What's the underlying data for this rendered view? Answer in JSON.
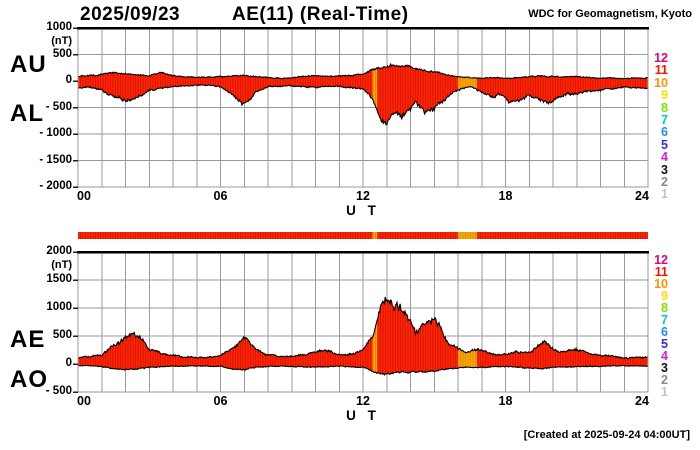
{
  "header": {
    "date": "2025/09/23",
    "title": "AE(11) (Real-Time)",
    "credit": "WDC for Geomagnetism, Kyoto"
  },
  "footer": {
    "created": "[Created at 2025-09-24 04:00UT]"
  },
  "colors": {
    "fill_red": "#ff2404",
    "fill_red_stripe": "#d81800",
    "fill_orange": "#ffa800",
    "fill_orange_stripe": "#e08c00",
    "grid": "#9a9a9a",
    "outline": "#000000",
    "top_border": "#000000"
  },
  "legend": {
    "values": [
      "12",
      "11",
      "10",
      "9",
      "8",
      "7",
      "6",
      "5",
      "4",
      "3",
      "2",
      "1"
    ],
    "colors": [
      "#e6007e",
      "#ff1000",
      "#ff9000",
      "#ffdc00",
      "#80e000",
      "#00c8d0",
      "#2088f8",
      "#4028d0",
      "#e018e0",
      "#101010",
      "#8a8a8a",
      "#c4c4c4"
    ]
  },
  "panels": [
    {
      "name": "AU-AL",
      "unit": "(nT)",
      "left_labels": [
        "AU",
        "AL"
      ],
      "ytick_labels": [
        "1000",
        "500",
        "0",
        "- 500",
        "- 1000",
        "- 1500",
        "- 2000"
      ],
      "ytick_values": [
        1000,
        500,
        0,
        -500,
        -1000,
        -1500,
        -2000
      ],
      "ymax": 1000,
      "ymin": -2000,
      "xtick_labels": [
        "00",
        "06",
        "12",
        "18",
        "24"
      ],
      "xtick_values": [
        0,
        6,
        12,
        18,
        24
      ],
      "xlabel": "U T"
    },
    {
      "name": "AE-AO",
      "unit": "(nT)",
      "left_labels": [
        "AE",
        "AO"
      ],
      "ytick_labels": [
        "2000",
        "1500",
        "1000",
        "500",
        "0",
        "- 500"
      ],
      "ytick_values": [
        2000,
        1500,
        1000,
        500,
        0,
        -500
      ],
      "ymax": 2000,
      "ymin": -500,
      "xtick_labels": [
        "00",
        "06",
        "12",
        "18",
        "24"
      ],
      "xtick_values": [
        0,
        6,
        12,
        18,
        24
      ],
      "xlabel": "U T"
    }
  ],
  "chart_data": [
    {
      "type": "area",
      "title": "AU / AL auroral electrojet indices, 2025/09/23",
      "xlabel": "U T",
      "ylabel": "nT",
      "xlim": [
        0,
        24
      ],
      "ylim": [
        -2000,
        1000
      ],
      "grid": true,
      "series": [
        {
          "name": "AU",
          "points": [
            [
              0,
              80
            ],
            [
              0.5,
              110
            ],
            [
              1,
              130
            ],
            [
              1.5,
              150
            ],
            [
              2,
              140
            ],
            [
              2.5,
              120
            ],
            [
              3,
              100
            ],
            [
              3.5,
              170
            ],
            [
              3.8,
              120
            ],
            [
              4,
              100
            ],
            [
              4.5,
              80
            ],
            [
              5,
              70
            ],
            [
              5.5,
              75
            ],
            [
              6,
              85
            ],
            [
              6.5,
              95
            ],
            [
              7,
              110
            ],
            [
              7.5,
              85
            ],
            [
              8,
              65
            ],
            [
              8.5,
              55
            ],
            [
              9,
              65
            ],
            [
              9.5,
              85
            ],
            [
              10,
              95
            ],
            [
              10.5,
              90
            ],
            [
              11,
              95
            ],
            [
              11.5,
              105
            ],
            [
              12,
              130
            ],
            [
              12.4,
              220
            ],
            [
              12.8,
              260
            ],
            [
              13.2,
              290
            ],
            [
              13.6,
              300
            ],
            [
              14,
              260
            ],
            [
              14.4,
              210
            ],
            [
              14.8,
              190
            ],
            [
              15.2,
              150
            ],
            [
              15.6,
              110
            ],
            [
              16,
              80
            ],
            [
              16.5,
              60
            ],
            [
              17,
              55
            ],
            [
              17.5,
              65
            ],
            [
              18,
              55
            ],
            [
              18.5,
              65
            ],
            [
              19,
              85
            ],
            [
              19.5,
              95
            ],
            [
              20,
              85
            ],
            [
              20.5,
              75
            ],
            [
              21,
              85
            ],
            [
              21.5,
              70
            ],
            [
              22,
              60
            ],
            [
              22.5,
              55
            ],
            [
              23,
              50
            ],
            [
              23.5,
              55
            ],
            [
              24,
              55
            ]
          ]
        },
        {
          "name": "AL",
          "points": [
            [
              0,
              -120
            ],
            [
              0.5,
              -110
            ],
            [
              1,
              -160
            ],
            [
              1.5,
              -300
            ],
            [
              2,
              -350
            ],
            [
              2.3,
              -330
            ],
            [
              2.7,
              -250
            ],
            [
              3,
              -160
            ],
            [
              3.5,
              -130
            ],
            [
              4,
              -100
            ],
            [
              4.5,
              -85
            ],
            [
              5,
              -75
            ],
            [
              5.5,
              -85
            ],
            [
              6,
              -110
            ],
            [
              6.5,
              -260
            ],
            [
              6.9,
              -420
            ],
            [
              7.1,
              -430
            ],
            [
              7.5,
              -200
            ],
            [
              8,
              -110
            ],
            [
              8.5,
              -85
            ],
            [
              9,
              -95
            ],
            [
              9.5,
              -105
            ],
            [
              10,
              -125
            ],
            [
              10.5,
              -105
            ],
            [
              11,
              -105
            ],
            [
              11.5,
              -125
            ],
            [
              12,
              -160
            ],
            [
              12.4,
              -350
            ],
            [
              12.7,
              -700
            ],
            [
              13,
              -800
            ],
            [
              13.3,
              -620
            ],
            [
              13.6,
              -720
            ],
            [
              13.9,
              -550
            ],
            [
              14.2,
              -420
            ],
            [
              14.6,
              -600
            ],
            [
              15,
              -560
            ],
            [
              15.4,
              -380
            ],
            [
              15.8,
              -220
            ],
            [
              16.2,
              -140
            ],
            [
              16.6,
              -110
            ],
            [
              17,
              -220
            ],
            [
              17.4,
              -300
            ],
            [
              17.8,
              -260
            ],
            [
              18.2,
              -420
            ],
            [
              18.6,
              -380
            ],
            [
              19,
              -260
            ],
            [
              19.4,
              -340
            ],
            [
              19.8,
              -380
            ],
            [
              20.2,
              -300
            ],
            [
              20.6,
              -240
            ],
            [
              21,
              -260
            ],
            [
              21.4,
              -200
            ],
            [
              22,
              -160
            ],
            [
              22.5,
              -130
            ],
            [
              23,
              -110
            ],
            [
              23.5,
              -120
            ],
            [
              24,
              -140
            ]
          ]
        }
      ]
    },
    {
      "type": "area",
      "title": "AE / AO auroral electrojet indices, 2025/09/23",
      "xlabel": "U T",
      "ylabel": "nT",
      "xlim": [
        0,
        24
      ],
      "ylim": [
        -500,
        2000
      ],
      "grid": true,
      "series": [
        {
          "name": "AE",
          "points": [
            [
              0,
              110
            ],
            [
              0.5,
              130
            ],
            [
              1,
              160
            ],
            [
              1.5,
              360
            ],
            [
              2,
              460
            ],
            [
              2.3,
              500
            ],
            [
              2.7,
              420
            ],
            [
              3,
              260
            ],
            [
              3.5,
              210
            ],
            [
              4,
              160
            ],
            [
              4.5,
              130
            ],
            [
              5,
              110
            ],
            [
              5.5,
              115
            ],
            [
              6,
              130
            ],
            [
              6.5,
              260
            ],
            [
              6.9,
              470
            ],
            [
              7.1,
              480
            ],
            [
              7.5,
              260
            ],
            [
              8,
              160
            ],
            [
              8.5,
              130
            ],
            [
              9,
              140
            ],
            [
              9.5,
              160
            ],
            [
              10,
              210
            ],
            [
              10.4,
              230
            ],
            [
              10.8,
              200
            ],
            [
              11.2,
              160
            ],
            [
              11.6,
              190
            ],
            [
              12,
              260
            ],
            [
              12.4,
              500
            ],
            [
              12.7,
              950
            ],
            [
              13,
              1100
            ],
            [
              13.3,
              920
            ],
            [
              13.6,
              1000
            ],
            [
              13.9,
              880
            ],
            [
              14.2,
              560
            ],
            [
              14.5,
              650
            ],
            [
              14.8,
              780
            ],
            [
              15,
              800
            ],
            [
              15.3,
              620
            ],
            [
              15.7,
              360
            ],
            [
              16,
              260
            ],
            [
              16.4,
              210
            ],
            [
              16.8,
              260
            ],
            [
              17.2,
              210
            ],
            [
              17.6,
              160
            ],
            [
              18,
              160
            ],
            [
              18.5,
              210
            ],
            [
              19,
              190
            ],
            [
              19.3,
              310
            ],
            [
              19.7,
              360
            ],
            [
              20,
              260
            ],
            [
              20.5,
              210
            ],
            [
              21,
              260
            ],
            [
              21.4,
              210
            ],
            [
              22,
              160
            ],
            [
              22.5,
              130
            ],
            [
              23,
              110
            ],
            [
              23.5,
              115
            ],
            [
              24,
              125
            ]
          ]
        },
        {
          "name": "AO",
          "points": [
            [
              0,
              -30
            ],
            [
              0.5,
              -35
            ],
            [
              1,
              -45
            ],
            [
              1.5,
              -85
            ],
            [
              2,
              -100
            ],
            [
              2.5,
              -90
            ],
            [
              3,
              -60
            ],
            [
              3.5,
              -50
            ],
            [
              4,
              -40
            ],
            [
              4.5,
              -35
            ],
            [
              5,
              -30
            ],
            [
              5.5,
              -35
            ],
            [
              6,
              -45
            ],
            [
              6.5,
              -85
            ],
            [
              7,
              -105
            ],
            [
              7.5,
              -65
            ],
            [
              8,
              -45
            ],
            [
              8.5,
              -40
            ],
            [
              9,
              -40
            ],
            [
              9.5,
              -45
            ],
            [
              10,
              -55
            ],
            [
              10.5,
              -45
            ],
            [
              11,
              -40
            ],
            [
              11.5,
              -50
            ],
            [
              12,
              -65
            ],
            [
              12.5,
              -140
            ],
            [
              13,
              -180
            ],
            [
              13.5,
              -150
            ],
            [
              14,
              -135
            ],
            [
              14.5,
              -145
            ],
            [
              15,
              -125
            ],
            [
              15.5,
              -85
            ],
            [
              16,
              -65
            ],
            [
              16.5,
              -60
            ],
            [
              17,
              -65
            ],
            [
              17.5,
              -55
            ],
            [
              18,
              -50
            ],
            [
              18.5,
              -55
            ],
            [
              19,
              -65
            ],
            [
              19.5,
              -85
            ],
            [
              20,
              -65
            ],
            [
              20.5,
              -55
            ],
            [
              21,
              -50
            ],
            [
              21.5,
              -45
            ],
            [
              22,
              -40
            ],
            [
              22.5,
              -35
            ],
            [
              23,
              -30
            ],
            [
              23.5,
              -35
            ],
            [
              24,
              -40
            ]
          ]
        }
      ]
    },
    {
      "type": "heatmap",
      "title": "station count strip",
      "xlim": [
        0,
        24
      ],
      "default_value": 11,
      "segments": [
        {
          "start": 12.4,
          "end": 12.6,
          "value": 10
        },
        {
          "start": 16.0,
          "end": 16.8,
          "value": 10
        }
      ]
    }
  ]
}
